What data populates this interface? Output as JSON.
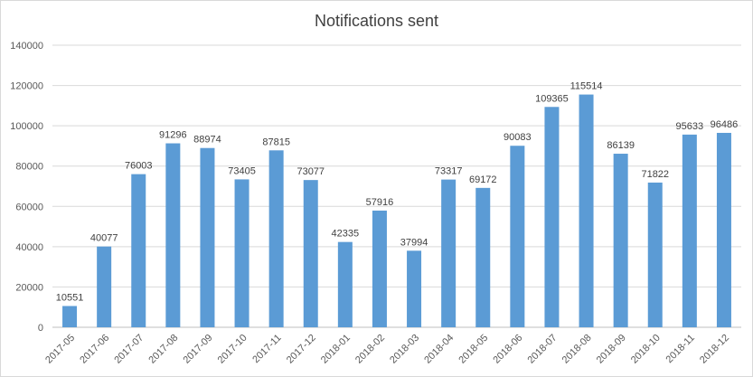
{
  "chart_data": {
    "type": "bar",
    "title": "Notifications sent",
    "categories": [
      "2017-05",
      "2017-06",
      "2017-07",
      "2017-08",
      "2017-09",
      "2017-10",
      "2017-11",
      "2017-12",
      "2018-01",
      "2018-02",
      "2018-03",
      "2018-04",
      "2018-05",
      "2018-06",
      "2018-07",
      "2018-08",
      "2018-09",
      "2018-10",
      "2018-11",
      "2018-12"
    ],
    "values": [
      10551,
      40077,
      76003,
      91296,
      88974,
      73405,
      87815,
      73077,
      42335,
      57916,
      37994,
      73317,
      69172,
      90083,
      109365,
      115514,
      86139,
      71822,
      95633,
      96486
    ],
    "y_ticks": [
      "0",
      "20000",
      "40000",
      "60000",
      "80000",
      "100000",
      "120000",
      "140000"
    ],
    "ylim": [
      0,
      140000
    ],
    "grid": true,
    "legend": "none",
    "data_labels": true,
    "colors": {
      "bar": "#5b9bd5",
      "grid": "#d9d9d9",
      "axis": "#bfbfbf",
      "text": "#595959"
    }
  }
}
